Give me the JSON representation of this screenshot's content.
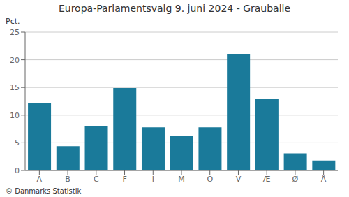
{
  "chart_data": {
    "type": "bar",
    "title": "Europa-Parlamentsvalg 9. juni 2024 - Grauballe",
    "ylabel": "Pct.",
    "annotations": [
      "© Danmarks Statistik"
    ],
    "categories": [
      "A",
      "B",
      "C",
      "F",
      "I",
      "M",
      "O",
      "V",
      "Æ",
      "Ø",
      "Å"
    ],
    "values": [
      12.2,
      4.4,
      8.0,
      14.9,
      7.8,
      6.3,
      7.8,
      21.0,
      13.0,
      3.1,
      1.8
    ],
    "color": "#1a7a9a",
    "ylim": [
      0,
      25
    ],
    "yticks": [
      0,
      5,
      10,
      15,
      20,
      25
    ],
    "grid": true
  }
}
